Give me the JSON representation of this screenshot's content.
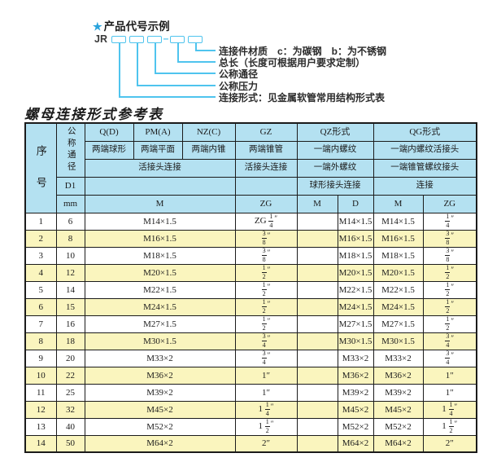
{
  "colors": {
    "line": "#4FC4EE",
    "star": "#29A3DC",
    "header_bg": "#B4E1F1",
    "band_bg": "#FAF5BE",
    "border": "#1B1B1B"
  },
  "diagram": {
    "star": "★",
    "title": "产品代号示例",
    "prefix": "JR",
    "dash": "–",
    "labels": [
      "连接件材质　c：为碳钢　b：为不锈钢",
      "总长（长度可根据用户要求定制）",
      "公称通径",
      "公称压力",
      "连接形式：见金属软管常用结构形式表"
    ]
  },
  "table": {
    "title": "螺母连接形式参考表",
    "header": {
      "seq": "序号",
      "dn": "公称通径",
      "d1": "D1",
      "mm": "mm",
      "groups": [
        {
          "code": "Q(D)",
          "ends": "两端球形"
        },
        {
          "code": "PM(A)",
          "ends": "两端平面"
        },
        {
          "code": "NZ(C)",
          "ends": "两端内锥"
        },
        {
          "code": "GZ",
          "ends": "两端锥管"
        }
      ],
      "union_connect": "活接头连接",
      "gz_connect": "活接头连接",
      "qz": {
        "code": "QZ形式",
        "row2": "一端内螺纹",
        "row3": "一端外螺纹",
        "row4": "球形接头连接",
        "sub": [
          "M",
          "D"
        ]
      },
      "qg": {
        "code": "QG形式",
        "row2": "一端内螺纹活接头",
        "row3": "一端锥管螺纹接头",
        "row4": "连接",
        "sub": [
          "M",
          "ZG"
        ]
      },
      "m_label": "M",
      "zg_label": "ZG"
    },
    "rows": [
      {
        "seq": "1",
        "dn": "6",
        "m": "M14×1.5",
        "gz": "ZG 1/4″",
        "qz_m": "",
        "qz_d": "M14×1.5",
        "qg_m": "M14×1.5",
        "qg_zg": "1/4″"
      },
      {
        "seq": "2",
        "dn": "8",
        "m": "M16×1.5",
        "gz": "3/8″",
        "qz_m": "",
        "qz_d": "M16×1.5",
        "qg_m": "M16×1.5",
        "qg_zg": "3/8″"
      },
      {
        "seq": "3",
        "dn": "10",
        "m": "M18×1.5",
        "gz": "3/8″",
        "qz_m": "",
        "qz_d": "M18×1.5",
        "qg_m": "M18×1.5",
        "qg_zg": "3/8″"
      },
      {
        "seq": "4",
        "dn": "12",
        "m": "M20×1.5",
        "gz": "1/2″",
        "qz_m": "",
        "qz_d": "M20×1.5",
        "qg_m": "M20×1.5",
        "qg_zg": "1/2″"
      },
      {
        "seq": "5",
        "dn": "14",
        "m": "M22×1.5",
        "gz": "1/2″",
        "qz_m": "",
        "qz_d": "M22×1.5",
        "qg_m": "M22×1.5",
        "qg_zg": "1/2″"
      },
      {
        "seq": "6",
        "dn": "15",
        "m": "M24×1.5",
        "gz": "1/2″",
        "qz_m": "",
        "qz_d": "M24×1.5",
        "qg_m": "M24×1.5",
        "qg_zg": "1/2″"
      },
      {
        "seq": "7",
        "dn": "16",
        "m": "M27×1.5",
        "gz": "1/2″",
        "qz_m": "",
        "qz_d": "M27×1.5",
        "qg_m": "M27×1.5",
        "qg_zg": "1/2″"
      },
      {
        "seq": "8",
        "dn": "18",
        "m": "M30×1.5",
        "gz": "3/4″",
        "qz_m": "",
        "qz_d": "M30×1.5",
        "qg_m": "M30×1.5",
        "qg_zg": "3/4″"
      },
      {
        "seq": "9",
        "dn": "20",
        "m": "M33×2",
        "gz": "3/4″",
        "qz_m": "",
        "qz_d": "M33×2",
        "qg_m": "M33×2",
        "qg_zg": "3/4″"
      },
      {
        "seq": "10",
        "dn": "22",
        "m": "M36×2",
        "gz": "1″",
        "qz_m": "",
        "qz_d": "M36×2",
        "qg_m": "M36×2",
        "qg_zg": "1″"
      },
      {
        "seq": "11",
        "dn": "25",
        "m": "M39×2",
        "gz": "1″",
        "qz_m": "",
        "qz_d": "M39×2",
        "qg_m": "M39×2",
        "qg_zg": "1″"
      },
      {
        "seq": "12",
        "dn": "32",
        "m": "M45×2",
        "gz": "1 1/4″",
        "qz_m": "",
        "qz_d": "M45×2",
        "qg_m": "M45×2",
        "qg_zg": "1 1/4″"
      },
      {
        "seq": "13",
        "dn": "40",
        "m": "M52×2",
        "gz": "1 1/2″",
        "qz_m": "",
        "qz_d": "M52×2",
        "qg_m": "M52×2",
        "qg_zg": "1 1/2″"
      },
      {
        "seq": "14",
        "dn": "50",
        "m": "M64×2",
        "gz": "2″",
        "qz_m": "",
        "qz_d": "M64×2",
        "qg_m": "M64×2",
        "qg_zg": "2″"
      }
    ]
  }
}
